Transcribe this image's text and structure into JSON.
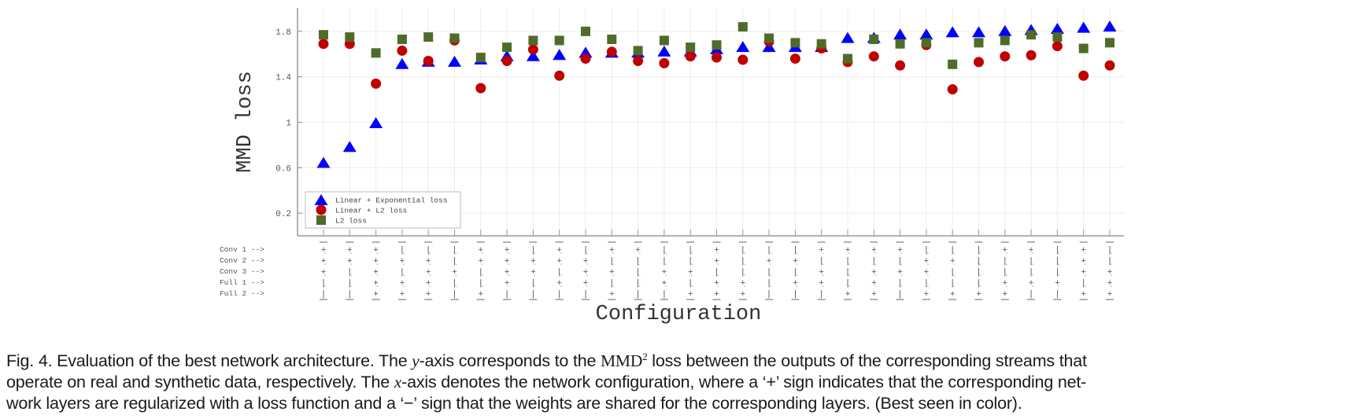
{
  "chart_data": {
    "type": "scatter",
    "title": "",
    "xlabel": "Configuration",
    "ylabel": "MMD loss",
    "ylim": [
      0,
      2.0
    ],
    "yticks": [
      0.2,
      0.6,
      1,
      1.4,
      1.8
    ],
    "ytick_labels": [
      "0.2",
      "0.6",
      "1",
      "1.4",
      "1.8"
    ],
    "grid": true,
    "legend_position": "lower left",
    "row_labels": [
      "Conv 1 -->",
      "Conv 2 -->",
      "Conv 3 -->",
      "Full 1 -->",
      "Full 2 -->"
    ],
    "categories": [
      "+ + + - -",
      "+ + - - -",
      "+ + + + +",
      "- + - + +",
      "- + + + +",
      "- - + - -",
      "+ + - - +",
      "+ + + + -",
      "- + + - -",
      "+ + - + -",
      "- + + + -",
      "+ - + - +",
      "+ - - - -",
      "- - + + -",
      "- - + - +",
      "+ + - + +",
      "- - - + +",
      "- + - - -",
      "- + - + -",
      "+ - + + -",
      "+ - - - +",
      "+ - + + +",
      "+ - + - -",
      "- + + - +",
      "- + - - +",
      "- - - - +",
      "+ - - + +",
      "+ - - + -",
      "- - - + -",
      "+ + + - +",
      "- - + + +"
    ],
    "series": [
      {
        "name": "Linear + Exponential loss",
        "marker": "triangle",
        "color": "#0000ff",
        "values": [
          0.64,
          0.78,
          0.99,
          1.51,
          1.53,
          1.53,
          1.55,
          1.58,
          1.58,
          1.59,
          1.61,
          1.61,
          1.61,
          1.62,
          1.62,
          1.64,
          1.66,
          1.66,
          1.66,
          1.66,
          1.74,
          1.74,
          1.77,
          1.77,
          1.79,
          1.79,
          1.8,
          1.81,
          1.82,
          1.83,
          1.84
        ]
      },
      {
        "name": "Linear + L2 loss",
        "marker": "circle",
        "color": "#c00000",
        "values": [
          1.69,
          1.69,
          1.34,
          1.63,
          1.54,
          1.72,
          1.3,
          1.54,
          1.64,
          1.41,
          1.56,
          1.62,
          1.54,
          1.52,
          1.58,
          1.57,
          1.55,
          1.71,
          1.56,
          1.65,
          1.53,
          1.58,
          1.5,
          1.68,
          1.29,
          1.53,
          1.58,
          1.59,
          1.67,
          1.41,
          1.5
        ]
      },
      {
        "name": "L2 loss",
        "marker": "square",
        "color": "#4f6b2a",
        "values": [
          1.77,
          1.75,
          1.61,
          1.73,
          1.75,
          1.74,
          1.57,
          1.66,
          1.72,
          1.72,
          1.8,
          1.73,
          1.63,
          1.72,
          1.66,
          1.68,
          1.84,
          1.74,
          1.7,
          1.69,
          1.56,
          1.73,
          1.69,
          1.7,
          1.51,
          1.7,
          1.72,
          1.77,
          1.75,
          1.65,
          1.7
        ]
      }
    ]
  },
  "caption": {
    "line1_a": "Fig. 4. Evaluation of the best network architecture. The ",
    "y_var": "y",
    "line1_b": "-axis corresponds to the ",
    "mmd": "MMD",
    "mmd_sup": "2",
    "line1_c": " loss between the outputs of the corresponding streams that",
    "line2_a": "operate on real and synthetic data, respectively. The ",
    "x_var": "x",
    "line2_b": "-axis denotes the network configuration, where a ‘+’ sign indicates that the corresponding net-",
    "line3": "work layers are regularized with a loss function and a ‘−’ sign that the weights are shared for the corresponding layers. (Best seen in color)."
  }
}
